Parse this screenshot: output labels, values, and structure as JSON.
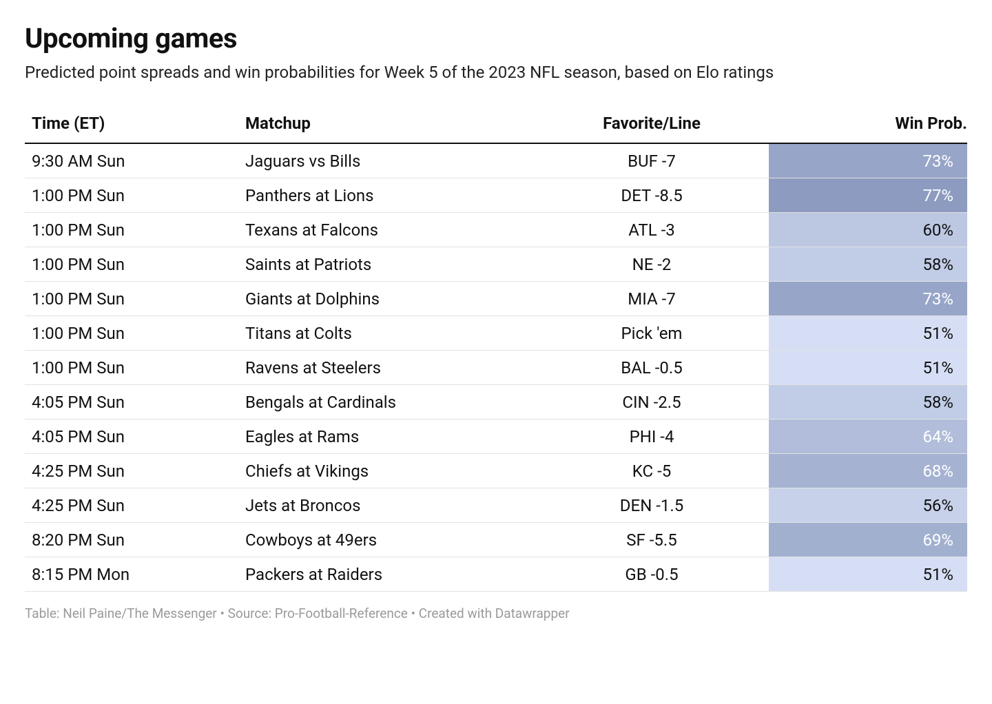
{
  "title": "Upcoming games",
  "subtitle": "Predicted point spreads and win probabilities for Week 5 of the 2023 NFL season, based on Elo ratings",
  "columns": {
    "time": "Time (ET)",
    "matchup": "Matchup",
    "favorite": "Favorite/Line",
    "winprob": "Win Prob."
  },
  "prob_scale": {
    "min": 50,
    "max": 100,
    "color_low": "#d8e1f6",
    "color_high": "#4b5f91",
    "text_light_threshold": 62,
    "text_dark": "#111111",
    "text_light": "#ffffff"
  },
  "rows": [
    {
      "time": "9:30 AM Sun",
      "matchup": "Jaguars vs Bills",
      "favorite": "BUF -7",
      "prob": 73
    },
    {
      "time": "1:00 PM Sun",
      "matchup": "Panthers at Lions",
      "favorite": "DET -8.5",
      "prob": 77
    },
    {
      "time": "1:00 PM Sun",
      "matchup": "Texans at Falcons",
      "favorite": "ATL -3",
      "prob": 60
    },
    {
      "time": "1:00 PM Sun",
      "matchup": "Saints at Patriots",
      "favorite": "NE -2",
      "prob": 58
    },
    {
      "time": "1:00 PM Sun",
      "matchup": "Giants at Dolphins",
      "favorite": "MIA -7",
      "prob": 73
    },
    {
      "time": "1:00 PM Sun",
      "matchup": "Titans at Colts",
      "favorite": "Pick 'em",
      "prob": 51
    },
    {
      "time": "1:00 PM Sun",
      "matchup": "Ravens at Steelers",
      "favorite": "BAL -0.5",
      "prob": 51
    },
    {
      "time": "4:05 PM Sun",
      "matchup": "Bengals at Cardinals",
      "favorite": "CIN -2.5",
      "prob": 58
    },
    {
      "time": "4:05 PM Sun",
      "matchup": "Eagles at Rams",
      "favorite": "PHI -4",
      "prob": 64
    },
    {
      "time": "4:25 PM Sun",
      "matchup": "Chiefs at Vikings",
      "favorite": "KC -5",
      "prob": 68
    },
    {
      "time": "4:25 PM Sun",
      "matchup": "Jets at Broncos",
      "favorite": "DEN -1.5",
      "prob": 56
    },
    {
      "time": "8:20 PM Sun",
      "matchup": "Cowboys at 49ers",
      "favorite": "SF -5.5",
      "prob": 69
    },
    {
      "time": "8:15 PM Mon",
      "matchup": "Packers at Raiders",
      "favorite": "GB -0.5",
      "prob": 51
    }
  ],
  "footnote": "Table: Neil Paine/The Messenger • Source: Pro-Football-Reference • Created with Datawrapper"
}
